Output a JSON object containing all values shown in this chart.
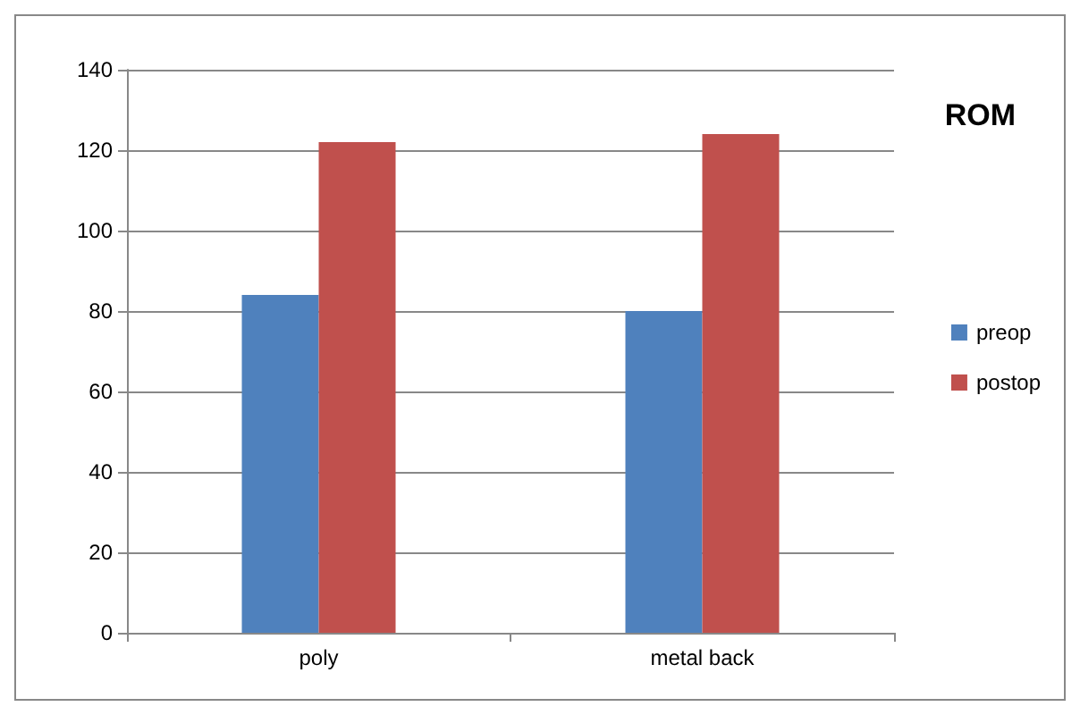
{
  "chart_data": {
    "type": "bar",
    "title": "ROM",
    "categories": [
      "poly",
      "metal back"
    ],
    "series": [
      {
        "name": "preop",
        "color": "#4f81bd",
        "values": [
          84,
          80
        ]
      },
      {
        "name": "postop",
        "color": "#c0504d",
        "values": [
          122,
          124
        ]
      }
    ],
    "ylim": [
      0,
      140
    ],
    "yticks": [
      0,
      20,
      40,
      60,
      80,
      100,
      120,
      140
    ],
    "grid": "y",
    "legend": "right"
  }
}
